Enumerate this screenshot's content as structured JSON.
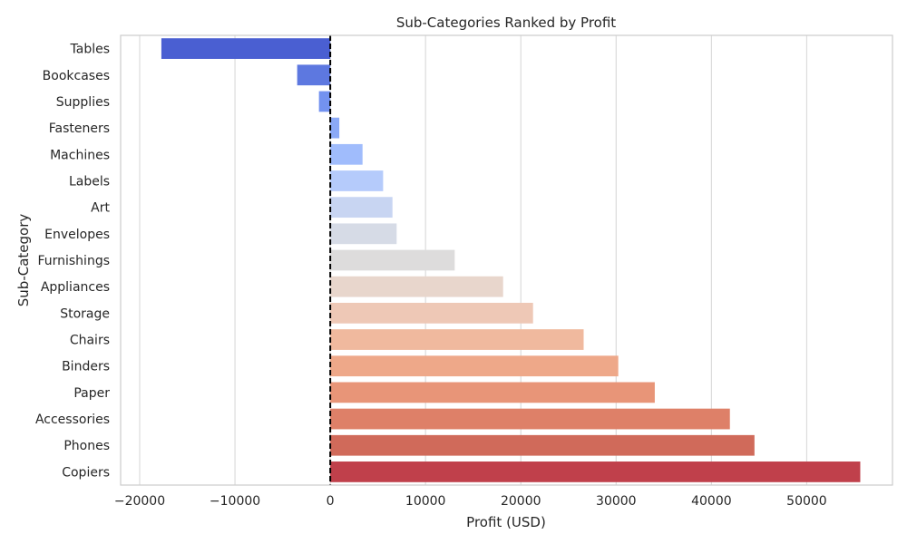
{
  "chart_data": {
    "type": "bar",
    "orientation": "horizontal",
    "title": "Sub-Categories Ranked by Profit",
    "xlabel": "Profit (USD)",
    "ylabel": "Sub-Category",
    "xlim": [
      -22000,
      59000
    ],
    "xticks": [
      -20000,
      -10000,
      0,
      10000,
      20000,
      30000,
      40000,
      50000
    ],
    "xtick_labels": [
      "−20000",
      "−10000",
      "0",
      "10000",
      "20000",
      "30000",
      "40000",
      "50000"
    ],
    "grid": "vertical",
    "reference_line": {
      "x": 0,
      "style": "dashed",
      "color": "#000000"
    },
    "categories": [
      "Tables",
      "Bookcases",
      "Supplies",
      "Fasteners",
      "Machines",
      "Labels",
      "Art",
      "Envelopes",
      "Furnishings",
      "Appliances",
      "Storage",
      "Chairs",
      "Binders",
      "Paper",
      "Accessories",
      "Phones",
      "Copiers"
    ],
    "values": [
      -17725,
      -3473,
      -1189,
      950,
      3385,
      5546,
      6528,
      6964,
      13059,
      18138,
      21279,
      26590,
      30222,
      34054,
      41937,
      44516,
      55618
    ],
    "colors": [
      "#4a5fd2",
      "#5d78e0",
      "#7392f0",
      "#8ba9f7",
      "#a0bcfc",
      "#b5cbfb",
      "#c8d5f2",
      "#d6dbe6",
      "#dddcdc",
      "#e8d6cc",
      "#eec8b6",
      "#f0b99e",
      "#eea889",
      "#e89578",
      "#de8068",
      "#d06a5a",
      "#c0404b"
    ]
  }
}
